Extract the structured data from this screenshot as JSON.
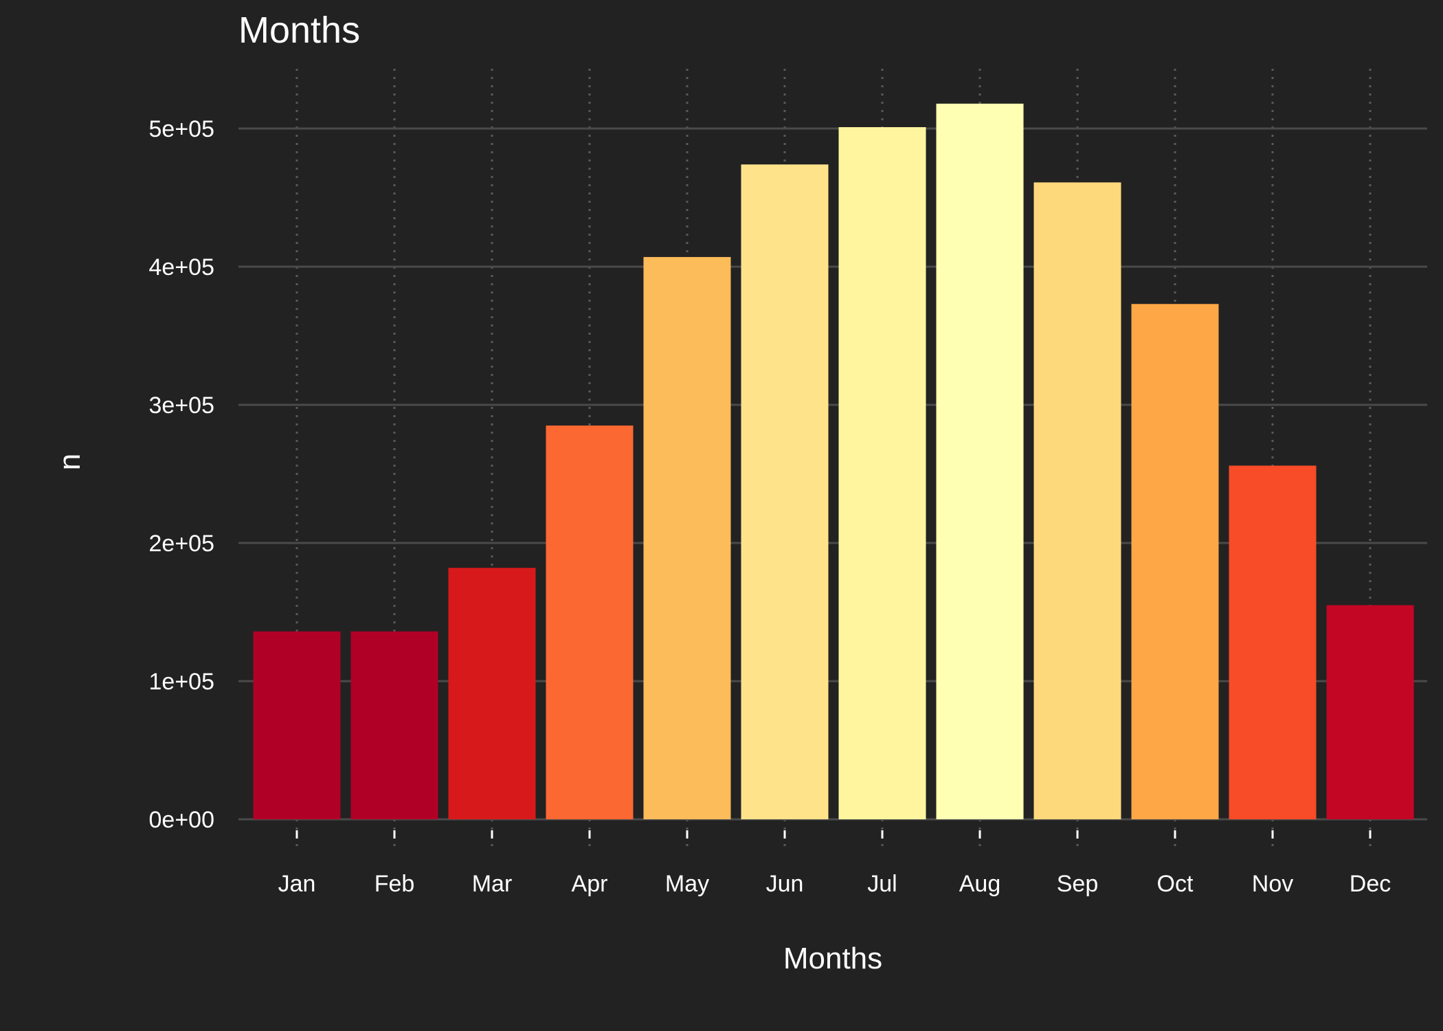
{
  "chart_data": {
    "type": "bar",
    "title": "Months",
    "xlabel": "Months",
    "ylabel": "n",
    "categories": [
      "Jan",
      "Feb",
      "Mar",
      "Apr",
      "May",
      "Jun",
      "Jul",
      "Aug",
      "Sep",
      "Oct",
      "Nov",
      "Dec"
    ],
    "values": [
      136000,
      136000,
      182000,
      285000,
      407000,
      474000,
      501000,
      518000,
      461000,
      373000,
      256000,
      155000
    ],
    "colors": [
      "#b10026",
      "#b10026",
      "#d7191c",
      "#fc6832",
      "#fdbc5a",
      "#fee38b",
      "#fff59f",
      "#ffffb4",
      "#fed97c",
      "#fea746",
      "#f84b28",
      "#c30624"
    ],
    "ylim": [
      0,
      540000
    ],
    "yticks": [
      {
        "value": 0,
        "label": "0e+00"
      },
      {
        "value": 100000,
        "label": "1e+05"
      },
      {
        "value": 200000,
        "label": "2e+05"
      },
      {
        "value": 300000,
        "label": "3e+05"
      },
      {
        "value": 400000,
        "label": "4e+05"
      },
      {
        "value": 500000,
        "label": "5e+05"
      }
    ],
    "grid": true,
    "legend": "none",
    "background": "#222222"
  }
}
